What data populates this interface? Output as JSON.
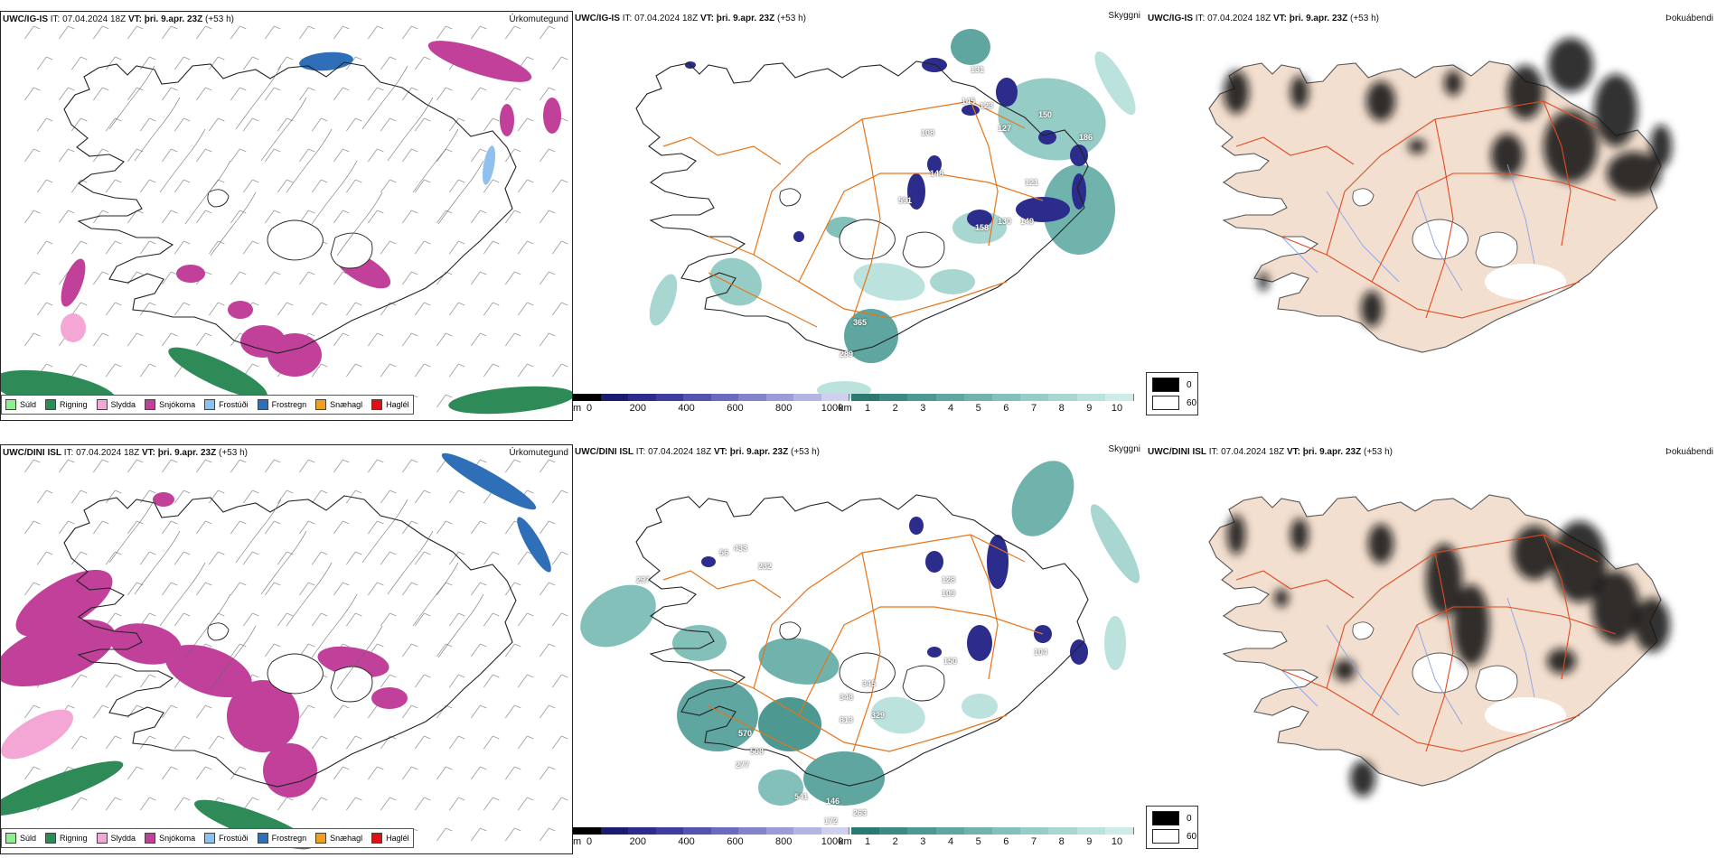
{
  "rows": [
    {
      "id": "igis",
      "precip": {
        "model": "UWC/IG-IS",
        "it_label": "IT:",
        "it_value": "07.04.2024 18Z",
        "vt_label": "VT:",
        "vt_value": "þri. 9.apr. 23Z",
        "lead": "(+53 h)",
        "product": "Úrkomutegund"
      },
      "cloud": {
        "model": "UWC/IG-IS",
        "it_label": "IT:",
        "it_value": "07.04.2024 18Z",
        "vt_label": "VT:",
        "vt_value": "þri. 9.apr. 23Z",
        "lead": "(+53 h)",
        "product": "Skyggni",
        "labels": [
          "131",
          "123",
          "108",
          "145",
          "150",
          "127",
          "186",
          "591",
          "148",
          "158",
          "130",
          "149",
          "121",
          "365",
          "289"
        ]
      },
      "fog": {
        "model": "UWC/IG-IS",
        "it_label": "IT:",
        "it_value": "07.04.2024 18Z",
        "vt_label": "VT:",
        "vt_value": "þri. 9.apr. 23Z",
        "lead": "(+53 h)",
        "product": "Þokuábendi",
        "legend": [
          "0",
          "60"
        ]
      }
    },
    {
      "id": "dini",
      "precip": {
        "model": "UWC/DINI ISL",
        "it_label": "IT:",
        "it_value": "07.04.2024 18Z",
        "vt_label": "VT:",
        "vt_value": "þri. 9.apr. 23Z",
        "lead": "(+53 h)",
        "product": "Úrkomutegund"
      },
      "cloud": {
        "model": "UWC/DINI ISL",
        "it_label": "IT:",
        "it_value": "07.04.2024 18Z",
        "vt_label": "VT:",
        "vt_value": "þri. 9.apr. 23Z",
        "lead": "(+53 h)",
        "product": "Skyggni",
        "labels": [
          "433",
          "56",
          "232",
          "297",
          "345",
          "348",
          "329",
          "813",
          "570",
          "508",
          "277",
          "128",
          "109",
          "150",
          "104",
          "146",
          "541",
          "172",
          "263"
        ]
      },
      "fog": {
        "model": "UWC/DINI ISL",
        "it_label": "IT:",
        "it_value": "07.04.2024 18Z",
        "vt_label": "VT:",
        "vt_value": "þri. 9.apr. 23Z",
        "lead": "(+53 h)",
        "product": "Þokuábendi",
        "legend": [
          "0",
          "60"
        ]
      }
    }
  ],
  "precip_legend": [
    {
      "label": "Súld",
      "color": "#90ee90"
    },
    {
      "label": "Rigning",
      "color": "#2e8b57"
    },
    {
      "label": "Slydda",
      "color": "#f4a6d4"
    },
    {
      "label": "Snjókoma",
      "color": "#c0409a"
    },
    {
      "label": "Frostúði",
      "color": "#8ec1ee"
    },
    {
      "label": "Frostregn",
      "color": "#2f6fb8"
    },
    {
      "label": "Snæhagl",
      "color": "#f0a020"
    },
    {
      "label": "Haglél",
      "color": "#e01010"
    }
  ],
  "colorbar_m": {
    "unit": "m",
    "ticks": [
      "0",
      "200",
      "400",
      "600",
      "800",
      "1000"
    ],
    "colors": [
      "#000000",
      "#1a1a6e",
      "#2c2c8c",
      "#3d3da0",
      "#5454b0",
      "#6a6abf",
      "#8383cc",
      "#9c9cd8",
      "#b5b5e3",
      "#cfcfee"
    ]
  },
  "colorbar_km": {
    "unit": "km",
    "ticks": [
      "1",
      "2",
      "3",
      "4",
      "5",
      "6",
      "7",
      "8",
      "9",
      "10"
    ],
    "colors": [
      "#2b7a72",
      "#3c8a82",
      "#4d9891",
      "#5ea69f",
      "#70b3ac",
      "#82c0b9",
      "#95ccc6",
      "#a8d7d2",
      "#bce2de",
      "#d0ece9"
    ]
  },
  "colors": {
    "coast": "#222222",
    "road": "#e8741a",
    "fog_land": "#f3dfcf",
    "fog_road": "#e04a22",
    "river": "#8aa2e8"
  }
}
